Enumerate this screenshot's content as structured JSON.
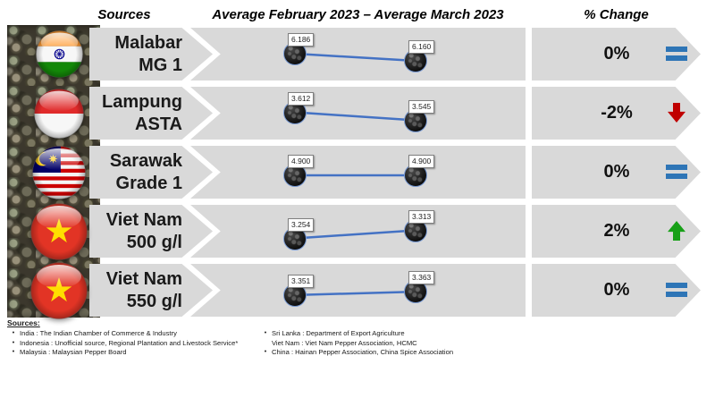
{
  "page": {
    "header": {
      "sources_label": "Sources",
      "period_label": "Average February 2023 – Average March 2023",
      "change_label": "% Change"
    },
    "rows": [
      {
        "label_line1": "Malabar",
        "label_line2": "MG 1",
        "flag": "india",
        "feb": "6.186",
        "mar": "6.160",
        "change": "0%",
        "trend": "equal"
      },
      {
        "label_line1": "Lampung",
        "label_line2": "ASTA",
        "flag": "indonesia",
        "feb": "3.612",
        "mar": "3.545",
        "change": "-2%",
        "trend": "down"
      },
      {
        "label_line1": "Sarawak",
        "label_line2": "Grade 1",
        "flag": "malaysia",
        "feb": "4.900",
        "mar": "4.900",
        "change": "0%",
        "trend": "equal"
      },
      {
        "label_line1": "Viet Nam",
        "label_line2": "500 g/l",
        "flag": "vietnam",
        "feb": "3.254",
        "mar": "3.313",
        "change": "2%",
        "trend": "up"
      },
      {
        "label_line1": "Viet Nam",
        "label_line2": "550 g/l",
        "flag": "vietnam",
        "feb": "3.351",
        "mar": "3.363",
        "change": "0%",
        "trend": "equal"
      }
    ],
    "footer": {
      "heading": "Sources:",
      "left_items": [
        "India : The Indian Chamber of Commerce & Industry",
        "Indonesia : Unofficial source, Regional Plantation and Livestock Service*",
        "Malaysia : Malaysian Pepper Board"
      ],
      "right_items": [
        "Sri Lanka : Department of Export Agriculture",
        "Viet Nam : Viet Nam Pepper Association, HCMC",
        "China : Hainan Pepper Association, China Spice Association"
      ]
    }
  },
  "chart_data": {
    "type": "line",
    "title": "Average February 2023 – Average March 2023",
    "x": [
      "Average February 2023",
      "Average March 2023"
    ],
    "series": [
      {
        "name": "Malabar MG 1",
        "country": "India",
        "values": [
          6.186,
          6.16
        ],
        "pct_change": "0%",
        "trend": "equal"
      },
      {
        "name": "Lampung ASTA",
        "country": "Indonesia",
        "values": [
          3.612,
          3.545
        ],
        "pct_change": "-2%",
        "trend": "down"
      },
      {
        "name": "Sarawak Grade 1",
        "country": "Malaysia",
        "values": [
          4.9,
          4.9
        ],
        "pct_change": "0%",
        "trend": "equal"
      },
      {
        "name": "Viet Nam 500 g/l",
        "country": "Viet Nam",
        "values": [
          3.254,
          3.313
        ],
        "pct_change": "2%",
        "trend": "up"
      },
      {
        "name": "Viet Nam 550 g/l",
        "country": "Viet Nam",
        "values": [
          3.351,
          3.363
        ],
        "pct_change": "0%",
        "trend": "equal"
      }
    ],
    "legend": false,
    "grid": false,
    "data_labels": true
  },
  "colors": {
    "banner_gray": "#d9d9d9",
    "line_blue": "#4472C4",
    "equal_blue": "#2E75B6",
    "down_red": "#C00000",
    "up_green": "#17A017",
    "label_box_border": "#7f7f7f"
  }
}
